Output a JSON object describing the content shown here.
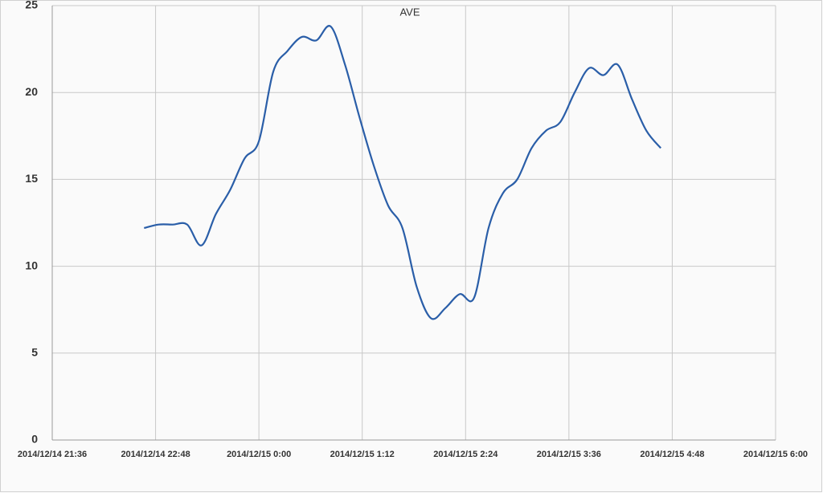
{
  "chart_data": {
    "type": "line",
    "title": "AVE",
    "x": [
      "2014/12/14 22:40",
      "2014/12/14 22:50",
      "2014/12/14 23:00",
      "2014/12/14 23:10",
      "2014/12/14 23:20",
      "2014/12/14 23:30",
      "2014/12/14 23:40",
      "2014/12/14 23:50",
      "2014/12/15 0:00",
      "2014/12/15 0:10",
      "2014/12/15 0:20",
      "2014/12/15 0:30",
      "2014/12/15 0:40",
      "2014/12/15 0:50",
      "2014/12/15 1:00",
      "2014/12/15 1:10",
      "2014/12/15 1:20",
      "2014/12/15 1:30",
      "2014/12/15 1:40",
      "2014/12/15 1:50",
      "2014/12/15 2:00",
      "2014/12/15 2:10",
      "2014/12/15 2:20",
      "2014/12/15 2:30",
      "2014/12/15 2:40",
      "2014/12/15 2:50",
      "2014/12/15 3:00",
      "2014/12/15 3:10",
      "2014/12/15 3:20",
      "2014/12/15 3:30",
      "2014/12/15 3:40",
      "2014/12/15 3:50",
      "2014/12/15 4:00",
      "2014/12/15 4:10",
      "2014/12/15 4:20",
      "2014/12/15 4:30",
      "2014/12/15 4:40"
    ],
    "series": [
      {
        "name": "AVE",
        "color": "#2a5ea8",
        "values": [
          12.2,
          12.4,
          12.4,
          12.4,
          11.2,
          13.0,
          14.4,
          16.2,
          17.2,
          21.2,
          22.4,
          23.2,
          23.0,
          23.8,
          21.6,
          18.6,
          15.8,
          13.5,
          12.2,
          8.8,
          7.0,
          7.6,
          8.4,
          8.2,
          12.2,
          14.2,
          15.0,
          16.8,
          17.8,
          18.3,
          20.0,
          21.4,
          21.0,
          21.6,
          19.6,
          17.8,
          16.8
        ]
      }
    ],
    "xlim": [
      "2014/12/14 21:36",
      "2014/12/15 6:00"
    ],
    "xticks": [
      "2014/12/14 21:36",
      "2014/12/14 22:48",
      "2014/12/15 0:00",
      "2014/12/15 1:12",
      "2014/12/15 2:24",
      "2014/12/15 3:36",
      "2014/12/15 4:48",
      "2014/12/15 6:00"
    ],
    "ylim": [
      0,
      25
    ],
    "yticks": [
      0,
      5,
      10,
      15,
      20,
      25
    ],
    "grid": true
  }
}
